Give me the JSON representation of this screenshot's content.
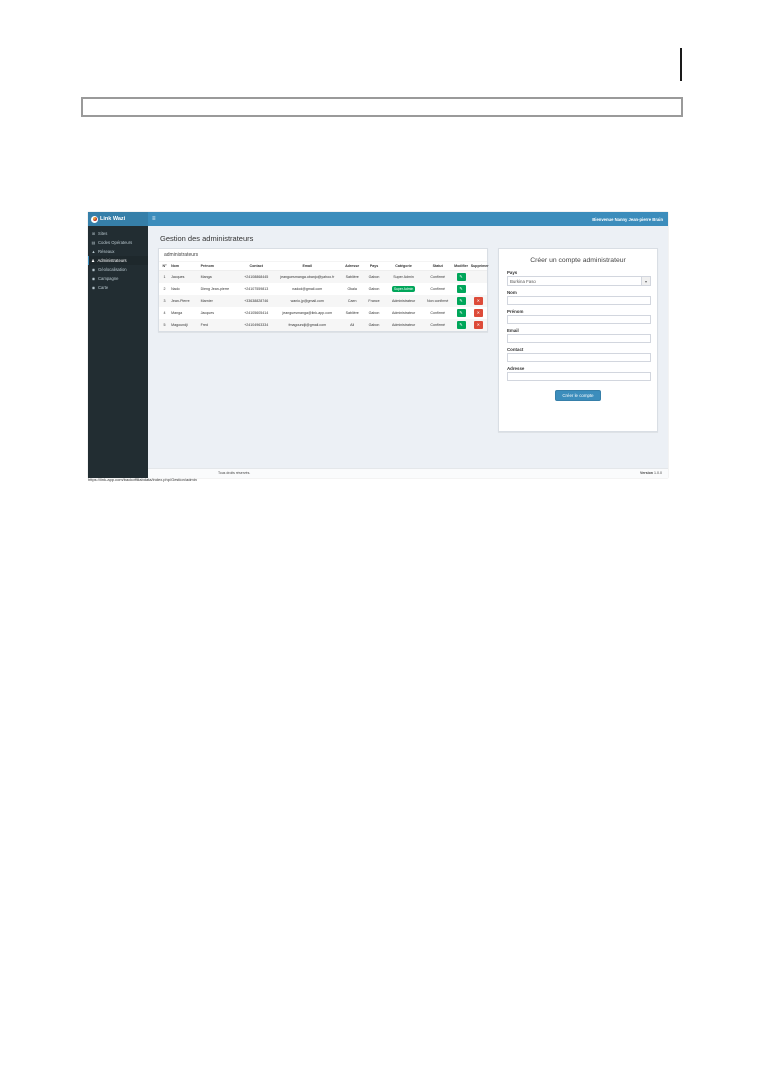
{
  "page": {
    "status_url": "https://link-app.com/backoffiliabdata/index.php/Gestion/admin"
  },
  "colors": {
    "navbar": "#3c8dbc",
    "navbar_brand": "#367fa9",
    "sidebar": "#222d32",
    "content_bg": "#ecf0f5",
    "green": "#00a65a",
    "red": "#dd4b39"
  },
  "icons": {
    "hamburger": "≡",
    "caret": "▾",
    "edit": "✎",
    "delete": "✕"
  },
  "app": {
    "navbar": {
      "brand": "Link Wazi",
      "welcome": "Bienvenue Nanny Jean-pierre Brain"
    },
    "sidebar": {
      "items": [
        {
          "id": "sites",
          "label": "Sites",
          "icon": "grid-icon",
          "glyph": "⊞",
          "active": false
        },
        {
          "id": "codes-operateurs",
          "label": "Codes Opérateurs",
          "icon": "list-icon",
          "glyph": "▤",
          "active": false
        },
        {
          "id": "reseaux",
          "label": "Réseaux",
          "icon": "chart-icon",
          "glyph": "▲",
          "active": false
        },
        {
          "id": "administrateurs",
          "label": "Administrateurs",
          "icon": "user-icon",
          "glyph": "♟",
          "active": true
        },
        {
          "id": "geolocalisation",
          "label": "Géolocalisation",
          "icon": "map-marker-icon",
          "glyph": "◉",
          "active": false
        },
        {
          "id": "campagne",
          "label": "Campagne",
          "icon": "map-marker-icon",
          "glyph": "◉",
          "active": false
        },
        {
          "id": "carte",
          "label": "Carte",
          "icon": "map-marker-icon",
          "glyph": "◉",
          "active": false
        }
      ]
    },
    "page_title": "Gestion des administrateurs",
    "table": {
      "title": "administrateurs",
      "columns": [
        "N°",
        "Nom",
        "Prénom",
        "Contact",
        "Email",
        "Adresse",
        "Pays",
        "Catégorie",
        "Statut",
        "Modifier",
        "Supprimer"
      ],
      "rows": [
        {
          "num": "1",
          "nom": "Jacques",
          "prenom": "Manga",
          "contact": "+24108868445",
          "email": "jeanguesmanga.obanjo@yahoo.fr",
          "adresse": "Sablière",
          "pays": "Gabon",
          "categorie": "Super Admin",
          "categorie_badge": false,
          "statut": "Confirmé",
          "can_delete": false
        },
        {
          "num": "2",
          "nom": "Nado",
          "prenom": "Dieng Jean-pierre",
          "contact": "+24107559813",
          "email": "nadod@gmail.com",
          "adresse": "Okala",
          "pays": "Gabon",
          "categorie": "Super Admin",
          "categorie_badge": true,
          "statut": "Confirmé",
          "can_delete": false
        },
        {
          "num": "3",
          "nom": "Jean-Pierre",
          "prenom": "Marnier",
          "contact": "+33638828746",
          "email": "wanio.jp@gmail.com",
          "adresse": "Caen",
          "pays": "France",
          "categorie": "Administrateur",
          "categorie_badge": false,
          "statut": "Non confirmé",
          "can_delete": true
        },
        {
          "num": "4",
          "nom": "Manga",
          "prenom": "Jacques",
          "contact": "+24105605414",
          "email": "jeanguesmanga@link-app.com",
          "adresse": "Sablière",
          "pays": "Gabon",
          "categorie": "Administrateur",
          "categorie_badge": false,
          "statut": "Confirmé",
          "can_delete": true
        },
        {
          "num": "5",
          "nom": "Magoundji",
          "prenom": "Fred",
          "contact": "+24104963334",
          "email": "fmagoundji@gmail.com",
          "adresse": "Ali",
          "pays": "Gabon",
          "categorie": "Administrateur",
          "categorie_badge": false,
          "statut": "Confirmé",
          "can_delete": true
        }
      ]
    },
    "form": {
      "title": "Créer un compte administrateur",
      "fields": [
        {
          "id": "pays",
          "label": "Pays",
          "type": "select",
          "value": "Burkina Faso"
        },
        {
          "id": "nom",
          "label": "Nom",
          "type": "input",
          "value": ""
        },
        {
          "id": "prenom",
          "label": "Prénom",
          "type": "input",
          "value": ""
        },
        {
          "id": "email",
          "label": "Email",
          "type": "input",
          "value": ""
        },
        {
          "id": "contact",
          "label": "Contact",
          "type": "input",
          "value": ""
        },
        {
          "id": "adresse",
          "label": "Adresse",
          "type": "input",
          "value": ""
        }
      ],
      "submit_label": "Créer le compte"
    },
    "footer": {
      "left": "Tous droits réservés.",
      "version_label": "Version",
      "version_value": "1.0.0"
    }
  }
}
